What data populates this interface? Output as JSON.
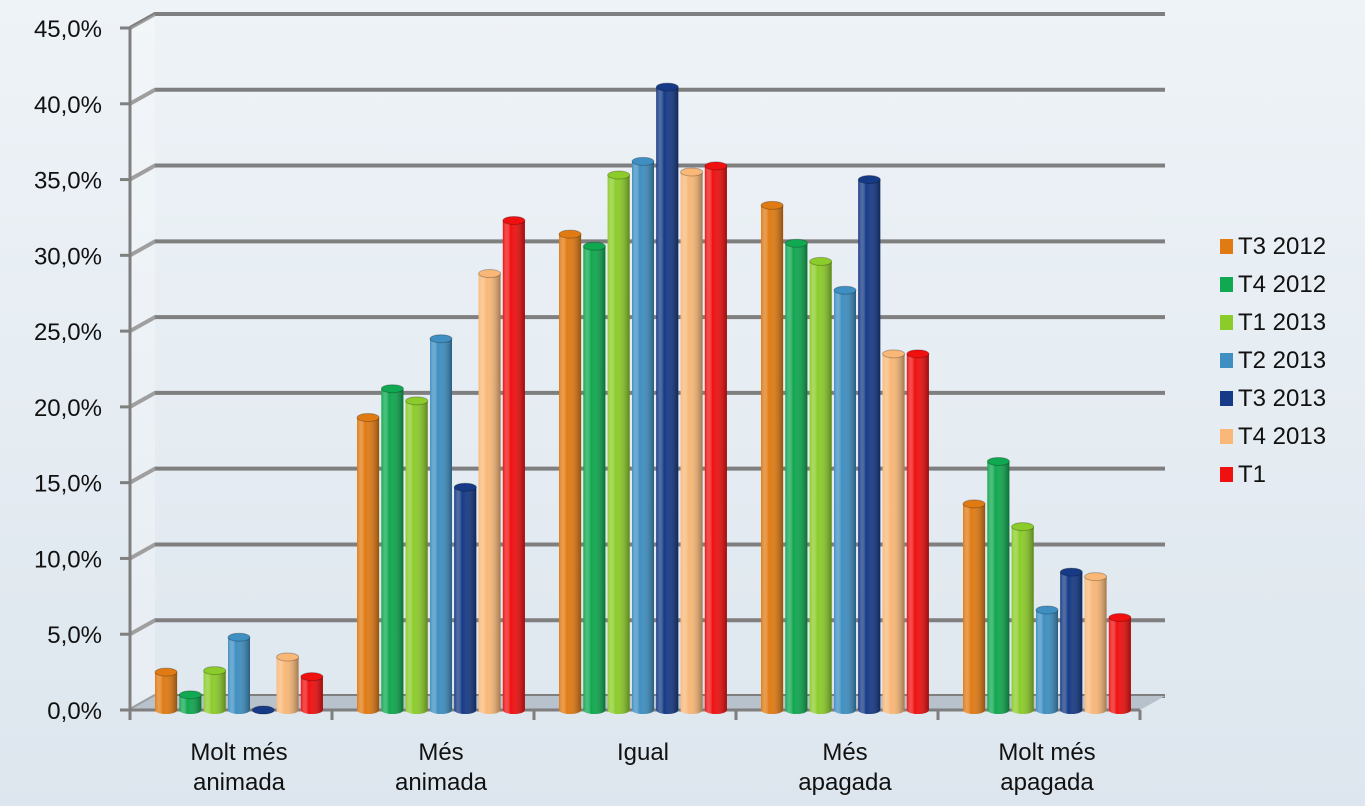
{
  "chart_data": {
    "type": "bar",
    "categories": [
      [
        "Molt més",
        "animada"
      ],
      [
        "Més",
        "animada"
      ],
      [
        "Igual"
      ],
      [
        "Més",
        "apagada"
      ],
      [
        "Molt més",
        "apagada"
      ]
    ],
    "y_ticks": [
      "0,0%",
      "5,0%",
      "10,0%",
      "15,0%",
      "20,0%",
      "25,0%",
      "30,0%",
      "35,0%",
      "40,0%",
      "45,0%"
    ],
    "ylim": [
      0,
      45
    ],
    "grid": true,
    "legend_position": "right",
    "series": [
      {
        "name": "T3 2012",
        "color": "#e07b14",
        "values": [
          2.5,
          19.3,
          31.4,
          33.3,
          13.6
        ]
      },
      {
        "name": "T4 2012",
        "color": "#10a850",
        "values": [
          1.0,
          21.2,
          30.6,
          30.8,
          16.4
        ]
      },
      {
        "name": "T1 2013",
        "color": "#8ccc2a",
        "values": [
          2.6,
          20.4,
          35.3,
          29.6,
          12.1
        ]
      },
      {
        "name": "T2 2013",
        "color": "#3f8fc2",
        "values": [
          4.8,
          24.5,
          36.2,
          27.7,
          6.6
        ]
      },
      {
        "name": "T3 2013",
        "color": "#163a86",
        "values": [
          0.0,
          14.7,
          41.1,
          35.0,
          9.1
        ]
      },
      {
        "name": "T4 2013",
        "color": "#f9b878",
        "values": [
          3.5,
          28.8,
          35.5,
          23.5,
          8.8
        ]
      },
      {
        "name": "T1",
        "color": "#f01010",
        "values": [
          2.2,
          32.3,
          35.9,
          23.5,
          6.1
        ]
      }
    ]
  }
}
